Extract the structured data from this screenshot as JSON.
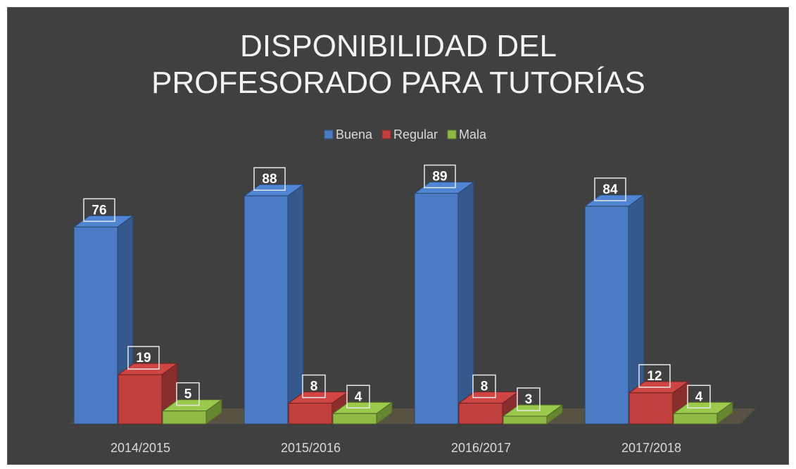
{
  "chart_data": {
    "type": "bar3d",
    "title": "DISPONIBILIDAD DEL PROFESORADO PARA TUTORÍAS",
    "categories": [
      "2014/2015",
      "2015/2016",
      "2016/2017",
      "2017/2018"
    ],
    "series": [
      {
        "name": "Buena",
        "color": "#4a7bc4",
        "values": [
          76,
          88,
          89,
          84
        ]
      },
      {
        "name": "Regular",
        "color": "#c0403e",
        "values": [
          19,
          8,
          8,
          12
        ]
      },
      {
        "name": "Mala",
        "color": "#8fba45",
        "values": [
          5,
          4,
          3,
          4
        ]
      }
    ],
    "legend": "top"
  }
}
